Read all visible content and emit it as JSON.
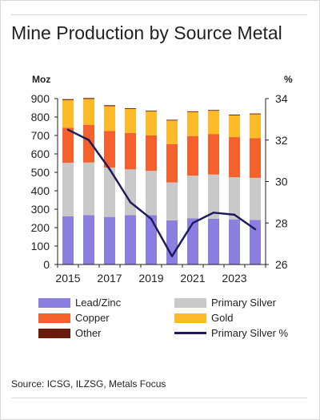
{
  "title": "Mine Production by Source Metal",
  "source": "Source: ICSG, ILZSG, Metals Focus",
  "chart_data": {
    "type": "bar",
    "stacked": true,
    "title": "Mine Production by Source Metal",
    "y_unit_left": "Moz",
    "y_unit_right": "%",
    "categories": [
      "2015",
      "2016",
      "2017",
      "2018",
      "2019",
      "2020",
      "2021",
      "2022",
      "2023",
      "2024"
    ],
    "x_tick_labels": [
      "2015",
      "2017",
      "2019",
      "2021",
      "2023"
    ],
    "ylim": [
      0,
      900
    ],
    "y_ticks": [
      0,
      100,
      200,
      300,
      400,
      500,
      600,
      700,
      800,
      900
    ],
    "y2lim": [
      26,
      34
    ],
    "y2_ticks": [
      26,
      28,
      30,
      32,
      34
    ],
    "series": [
      {
        "name": "Lead/Zinc",
        "color": "#8b7fe0",
        "values": [
          262,
          268,
          258,
          268,
          268,
          240,
          250,
          248,
          245,
          242
        ]
      },
      {
        "name": "Primary Silver",
        "color": "#c9c9c9",
        "values": [
          290,
          285,
          268,
          248,
          240,
          205,
          232,
          240,
          228,
          228
        ]
      },
      {
        "name": "Copper",
        "color": "#f4612c",
        "values": [
          190,
          205,
          198,
          198,
          192,
          208,
          215,
          220,
          218,
          215
        ]
      },
      {
        "name": "Gold",
        "color": "#fdbb2a",
        "values": [
          150,
          140,
          135,
          130,
          130,
          128,
          130,
          126,
          118,
          130
        ]
      },
      {
        "name": "Other",
        "color": "#6a1a0a",
        "values": [
          5,
          5,
          5,
          4,
          4,
          4,
          4,
          4,
          4,
          4
        ]
      }
    ],
    "line_series": {
      "name": "Primary Silver %",
      "color": "#1f1b5e",
      "axis": "right",
      "values": [
        32.5,
        32.0,
        30.6,
        29.0,
        28.2,
        26.4,
        28.0,
        28.5,
        28.4,
        27.7
      ]
    },
    "legend_position": "bottom",
    "grid": false
  }
}
